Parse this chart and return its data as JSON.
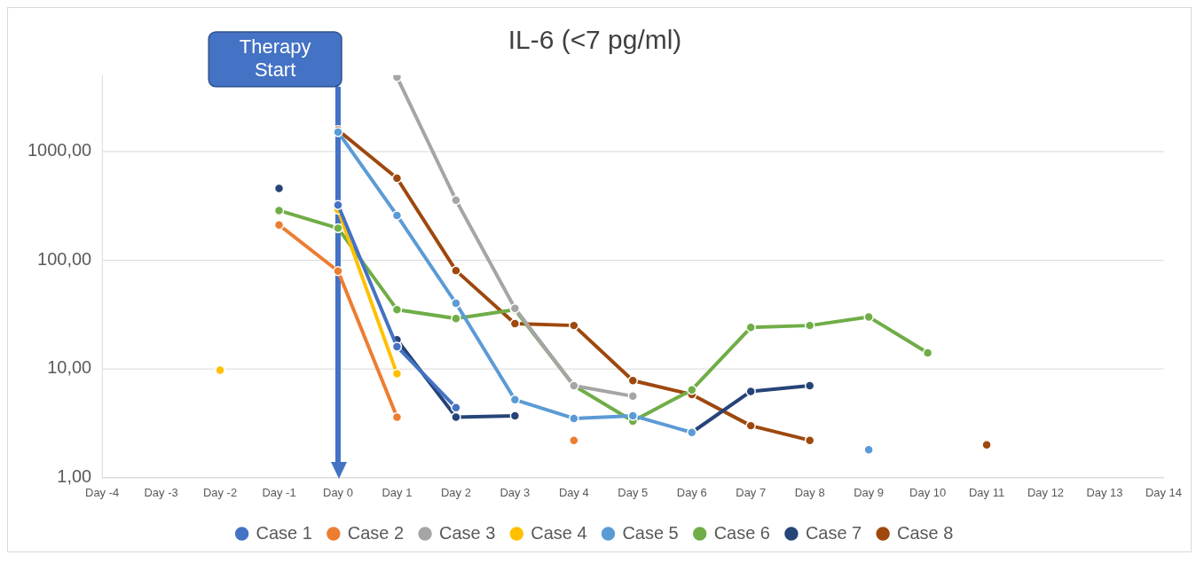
{
  "chart_data": {
    "type": "line",
    "title": "IL-6 (<7 pg/ml)",
    "categories": [
      "Day -4",
      "Day -3",
      "Day -2",
      "Day -1",
      "Day 0",
      "Day 1",
      "Day 2",
      "Day 3",
      "Day 4",
      "Day 5",
      "Day 6",
      "Day 7",
      "Day 8",
      "Day 9",
      "Day 10",
      "Day 11",
      "Day 12",
      "Day 13",
      "Day 14"
    ],
    "series": [
      {
        "name": "Case 1",
        "color": "#4472c4",
        "values": [
          null,
          null,
          null,
          null,
          320,
          16,
          4.4,
          null,
          null,
          null,
          null,
          null,
          null,
          null,
          null,
          null,
          null,
          null,
          null
        ]
      },
      {
        "name": "Case 2",
        "color": "#ed7d31",
        "values": [
          null,
          null,
          null,
          210,
          79,
          3.6,
          null,
          null,
          2.2,
          null,
          null,
          null,
          null,
          null,
          null,
          null,
          null,
          null,
          null
        ]
      },
      {
        "name": "Case 3",
        "color": "#a5a5a5",
        "values": [
          null,
          null,
          null,
          null,
          null,
          4800,
          355,
          36,
          7,
          5.6,
          null,
          null,
          null,
          null,
          null,
          null,
          null,
          null,
          null
        ]
      },
      {
        "name": "Case 4",
        "color": "#ffc000",
        "values": [
          null,
          null,
          9.7,
          null,
          290,
          9,
          null,
          null,
          null,
          null,
          null,
          null,
          null,
          null,
          null,
          null,
          null,
          null,
          null
        ]
      },
      {
        "name": "Case 5",
        "color": "#5b9bd5",
        "values": [
          null,
          null,
          null,
          null,
          1500,
          257,
          40,
          5.2,
          3.5,
          3.7,
          2.6,
          null,
          null,
          1.8,
          null,
          null,
          null,
          null,
          null
        ]
      },
      {
        "name": "Case 6",
        "color": "#70ad47",
        "values": [
          null,
          null,
          null,
          285,
          196,
          35,
          29,
          35,
          7,
          3.3,
          6.4,
          24,
          25,
          30,
          14,
          null,
          null,
          null,
          null
        ]
      },
      {
        "name": "Case 7",
        "color": "#264478",
        "values": [
          null,
          null,
          null,
          455,
          null,
          18.5,
          3.6,
          3.7,
          null,
          null,
          2.6,
          6.2,
          7,
          null,
          null,
          null,
          null,
          null,
          null
        ]
      },
      {
        "name": "Case 8",
        "color": "#9e480e",
        "values": [
          null,
          null,
          null,
          null,
          1560,
          565,
          80,
          26,
          25,
          7.8,
          5.8,
          3,
          2.2,
          null,
          null,
          2,
          null,
          null,
          null
        ]
      }
    ],
    "log": true,
    "ylim": [
      1,
      5000
    ],
    "yticks": [
      {
        "value": 1,
        "label": "1,00"
      },
      {
        "value": 10,
        "label": "10,00"
      },
      {
        "value": 100,
        "label": "100,00"
      },
      {
        "value": 1000,
        "label": "1000,00"
      }
    ],
    "grid": "y",
    "legend": "bottom",
    "marker": "circle",
    "line_style": "solid",
    "ref_lines": [
      {
        "axis": "x",
        "value": "Day 0",
        "label": "Therapy Start",
        "color": "#4472c4"
      }
    ]
  }
}
